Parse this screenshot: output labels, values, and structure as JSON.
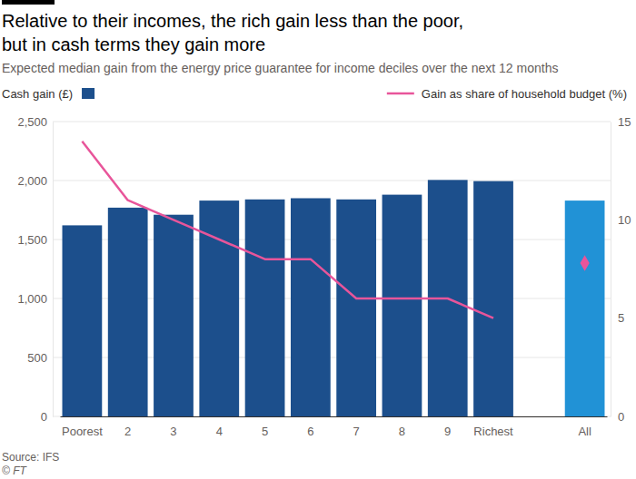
{
  "chart_data": {
    "type": "bar",
    "title": [
      "Relative to their incomes, the rich gain less than the poor,",
      "but in cash terms they gain more"
    ],
    "subtitle": "Expected median gain from the energy price guarantee for income deciles over the next 12 months",
    "source": "Source: IFS",
    "credit": "© FT",
    "categories": [
      "Poorest",
      "2",
      "3",
      "4",
      "5",
      "6",
      "7",
      "8",
      "9",
      "Richest",
      null,
      "All"
    ],
    "series": [
      {
        "name": "Cash gain (£)",
        "type": "bar",
        "colors": [
          "#1c4f8c",
          "#1c4f8c",
          "#1c4f8c",
          "#1c4f8c",
          "#1c4f8c",
          "#1c4f8c",
          "#1c4f8c",
          "#1c4f8c",
          "#1c4f8c",
          "#1c4f8c",
          null,
          "#2192d6"
        ],
        "values": [
          1620,
          1770,
          1710,
          1830,
          1840,
          1850,
          1840,
          1880,
          2005,
          1995,
          null,
          1830
        ]
      },
      {
        "name": "Gain as share of household budget (%)",
        "type": "line",
        "axis": "y2",
        "color": "#e8559a",
        "marker": "diamond",
        "values": [
          14,
          11,
          10,
          9,
          8,
          8,
          6,
          6,
          6,
          5,
          null,
          7.8
        ]
      }
    ],
    "ylim": [
      0,
      2500
    ],
    "yticks": [
      0,
      500,
      {
        "value": 1000,
        "label": "1,000"
      },
      {
        "value": 1500,
        "label": "1,500"
      },
      {
        "value": 2000,
        "label": "2,000"
      },
      {
        "value": 2500,
        "label": "2,500"
      }
    ],
    "y2lim": [
      0,
      15
    ],
    "y2ticks": [
      0,
      5,
      10,
      15
    ],
    "grid": true,
    "legend": "top"
  }
}
